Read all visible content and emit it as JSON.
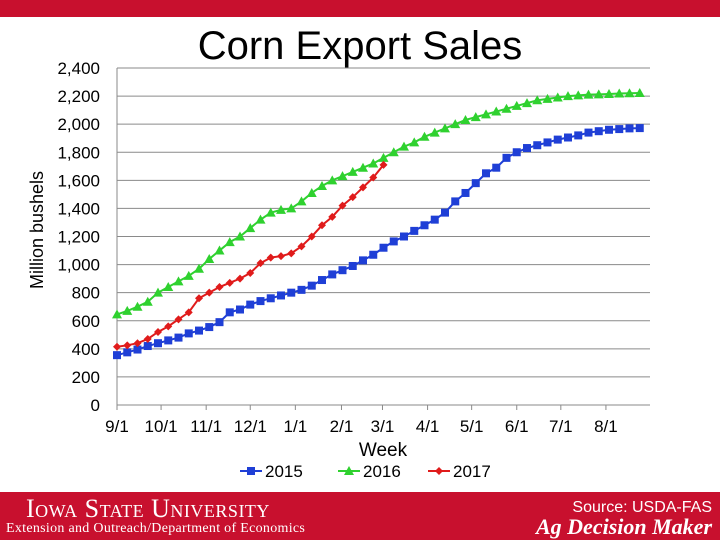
{
  "slide": {
    "footer_university": "Iowa State University",
    "footer_department": "Extension and Outreach/Department of Economics",
    "footer_brand": "Ag Decision Maker",
    "source": "Source: USDA-FAS"
  },
  "colors": {
    "brand_red": "#c8102e",
    "series_2015": "#1f3fd6",
    "series_2016": "#2fd12f",
    "series_2017": "#e01b1b",
    "gridline": "#8a8a8a"
  },
  "chart_data": {
    "type": "line",
    "title": "Corn Export Sales",
    "xlabel": "Week",
    "ylabel": "Million bushels",
    "ylim": [
      0,
      2400
    ],
    "yticks": [
      "0",
      "200",
      "400",
      "600",
      "800",
      "1,000",
      "1,200",
      "1,400",
      "1,600",
      "1,800",
      "2,000",
      "2,200",
      "2,400"
    ],
    "xlim": [
      0,
      52
    ],
    "xticks": [
      {
        "week": 0,
        "label": "9/1"
      },
      {
        "week": 4.3,
        "label": "10/1"
      },
      {
        "week": 8.7,
        "label": "11/1"
      },
      {
        "week": 13,
        "label": "12/1"
      },
      {
        "week": 17.4,
        "label": "1/1"
      },
      {
        "week": 21.9,
        "label": "2/1"
      },
      {
        "week": 25.9,
        "label": "3/1"
      },
      {
        "week": 30.3,
        "label": "4/1"
      },
      {
        "week": 34.6,
        "label": "5/1"
      },
      {
        "week": 39,
        "label": "6/1"
      },
      {
        "week": 43.3,
        "label": "7/1"
      },
      {
        "week": 47.7,
        "label": "8/1"
      }
    ],
    "legend_position": "bottom",
    "grid": "horizontal",
    "series": [
      {
        "name": "2015",
        "marker": "square",
        "color": "#1f3fd6",
        "values": [
          355,
          375,
          395,
          420,
          440,
          460,
          480,
          510,
          530,
          555,
          590,
          660,
          680,
          715,
          740,
          760,
          780,
          800,
          820,
          850,
          890,
          930,
          960,
          990,
          1030,
          1070,
          1120,
          1165,
          1200,
          1240,
          1280,
          1320,
          1370,
          1450,
          1510,
          1580,
          1650,
          1690,
          1760,
          1800,
          1830,
          1850,
          1870,
          1890,
          1905,
          1920,
          1940,
          1950,
          1960,
          1965,
          1970,
          1972
        ]
      },
      {
        "name": "2016",
        "marker": "triangle",
        "color": "#2fd12f",
        "values": [
          645,
          670,
          700,
          735,
          800,
          840,
          880,
          920,
          970,
          1040,
          1100,
          1160,
          1200,
          1260,
          1320,
          1370,
          1390,
          1400,
          1450,
          1510,
          1560,
          1600,
          1630,
          1660,
          1690,
          1720,
          1760,
          1800,
          1840,
          1870,
          1910,
          1940,
          1970,
          2000,
          2030,
          2050,
          2070,
          2090,
          2110,
          2130,
          2150,
          2170,
          2180,
          2190,
          2200,
          2205,
          2210,
          2212,
          2215,
          2218,
          2220,
          2222
        ]
      },
      {
        "name": "2017",
        "marker": "diamond",
        "color": "#e01b1b",
        "values": [
          415,
          425,
          440,
          470,
          520,
          560,
          610,
          660,
          760,
          800,
          840,
          870,
          900,
          940,
          1010,
          1050,
          1060,
          1080,
          1130,
          1200,
          1280,
          1340,
          1420,
          1480,
          1550,
          1620,
          1710
        ]
      }
    ]
  }
}
